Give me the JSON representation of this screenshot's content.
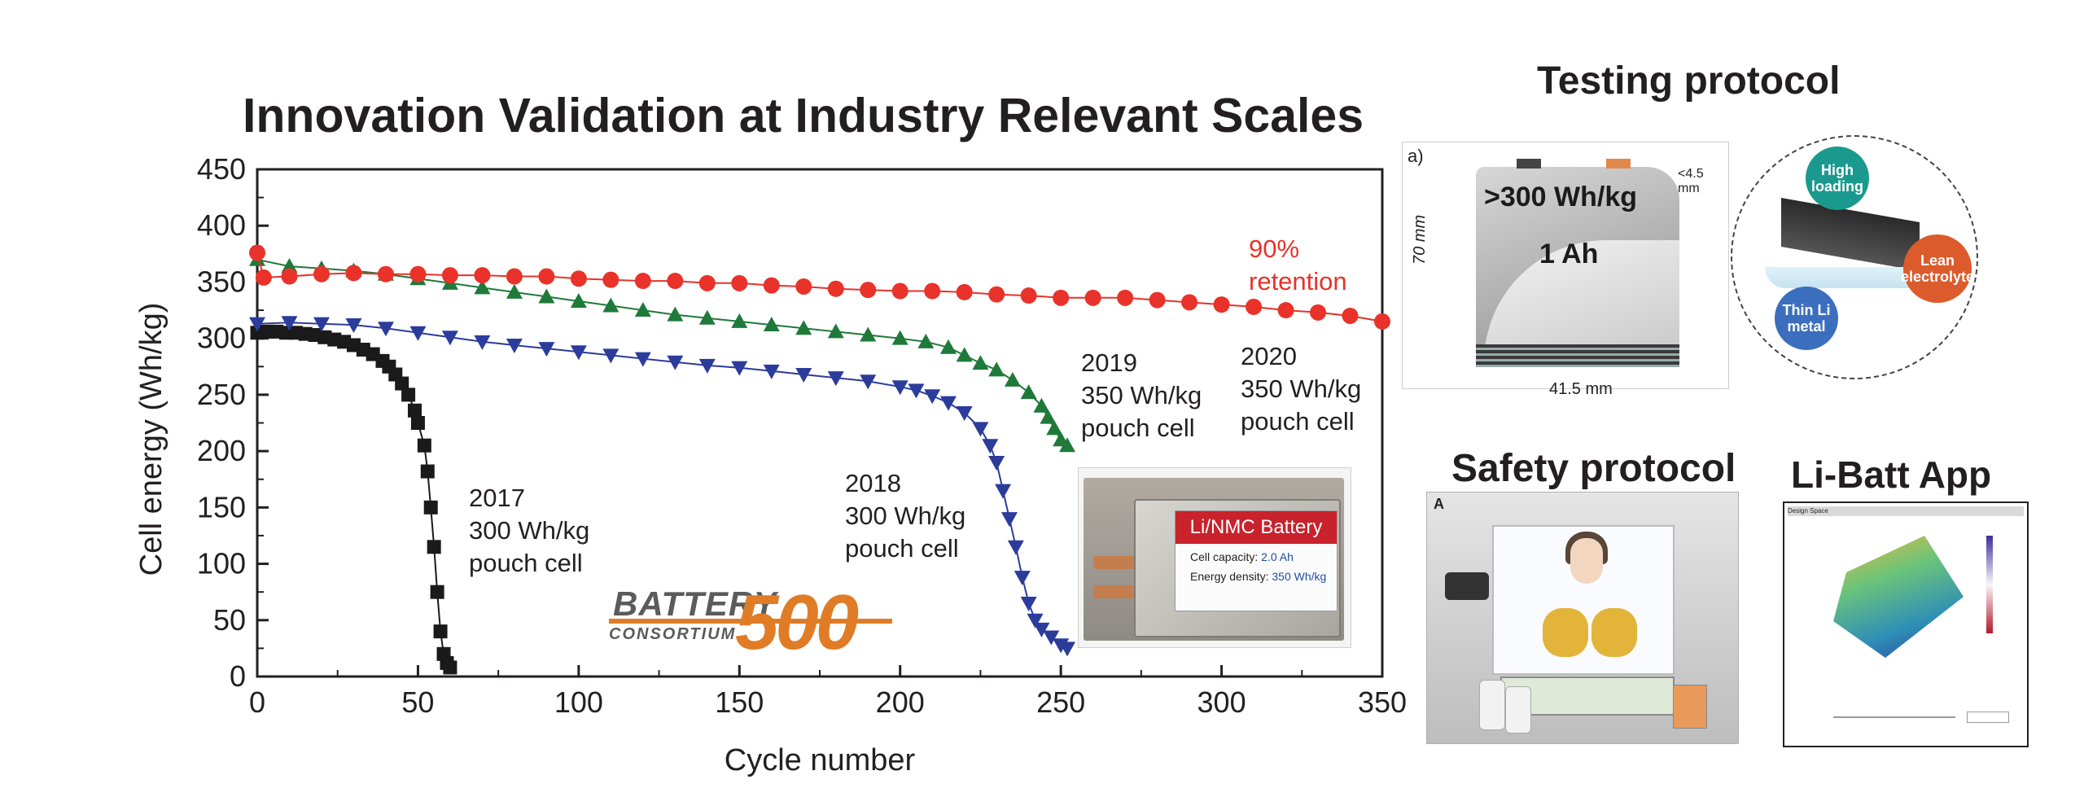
{
  "chart_data": {
    "type": "scatter",
    "title": "Innovation Validation at Industry Relevant Scales",
    "xlabel": "Cycle number",
    "ylabel": "Cell energy (Wh/kg)",
    "xlim": [
      0,
      350
    ],
    "ylim": [
      0,
      450
    ],
    "xticks": [
      0,
      50,
      100,
      150,
      200,
      250,
      300,
      350
    ],
    "yticks": [
      0,
      50,
      100,
      150,
      200,
      250,
      300,
      350,
      400,
      450
    ],
    "grid": false,
    "series": [
      {
        "name_lines": [
          "2017",
          "300 Wh/kg",
          "pouch cell"
        ],
        "marker": "square",
        "color": "#1a1a1a",
        "points": [
          [
            0,
            305
          ],
          [
            3,
            306
          ],
          [
            6,
            306
          ],
          [
            9,
            305
          ],
          [
            12,
            305
          ],
          [
            15,
            304
          ],
          [
            18,
            303
          ],
          [
            21,
            301
          ],
          [
            24,
            299
          ],
          [
            27,
            297
          ],
          [
            30,
            294
          ],
          [
            33,
            290
          ],
          [
            36,
            286
          ],
          [
            39,
            280
          ],
          [
            41,
            275
          ],
          [
            43,
            268
          ],
          [
            45,
            260
          ],
          [
            47,
            250
          ],
          [
            49,
            236
          ],
          [
            50,
            225
          ],
          [
            52,
            205
          ],
          [
            53,
            182
          ],
          [
            54,
            150
          ],
          [
            55,
            115
          ],
          [
            56,
            75
          ],
          [
            57,
            40
          ],
          [
            58,
            20
          ],
          [
            59,
            12
          ],
          [
            60,
            8
          ]
        ]
      },
      {
        "name_lines": [
          "2018",
          "300 Wh/kg",
          "pouch cell"
        ],
        "marker": "triangle-down",
        "color": "#2b3c9b",
        "points": [
          [
            0,
            313
          ],
          [
            10,
            314
          ],
          [
            20,
            313
          ],
          [
            30,
            312
          ],
          [
            40,
            309
          ],
          [
            50,
            305
          ],
          [
            60,
            301
          ],
          [
            70,
            297
          ],
          [
            80,
            294
          ],
          [
            90,
            291
          ],
          [
            100,
            288
          ],
          [
            110,
            285
          ],
          [
            120,
            282
          ],
          [
            130,
            279
          ],
          [
            140,
            276
          ],
          [
            150,
            274
          ],
          [
            160,
            271
          ],
          [
            170,
            268
          ],
          [
            180,
            265
          ],
          [
            190,
            262
          ],
          [
            200,
            257
          ],
          [
            205,
            254
          ],
          [
            210,
            249
          ],
          [
            215,
            243
          ],
          [
            220,
            234
          ],
          [
            225,
            220
          ],
          [
            228,
            205
          ],
          [
            230,
            190
          ],
          [
            232,
            165
          ],
          [
            234,
            140
          ],
          [
            236,
            115
          ],
          [
            238,
            88
          ],
          [
            240,
            65
          ],
          [
            242,
            50
          ],
          [
            244,
            42
          ],
          [
            247,
            35
          ],
          [
            250,
            28
          ],
          [
            252,
            25
          ]
        ]
      },
      {
        "name_lines": [
          "2019",
          "350 Wh/kg",
          "pouch cell"
        ],
        "marker": "triangle-up",
        "color": "#1f7a3a",
        "points": [
          [
            0,
            370
          ],
          [
            10,
            364
          ],
          [
            20,
            362
          ],
          [
            30,
            360
          ],
          [
            40,
            357
          ],
          [
            50,
            353
          ],
          [
            60,
            349
          ],
          [
            70,
            345
          ],
          [
            80,
            341
          ],
          [
            90,
            337
          ],
          [
            100,
            333
          ],
          [
            110,
            329
          ],
          [
            120,
            325
          ],
          [
            130,
            321
          ],
          [
            140,
            318
          ],
          [
            150,
            315
          ],
          [
            160,
            312
          ],
          [
            170,
            309
          ],
          [
            180,
            306
          ],
          [
            190,
            303
          ],
          [
            200,
            300
          ],
          [
            208,
            297
          ],
          [
            215,
            292
          ],
          [
            220,
            285
          ],
          [
            225,
            278
          ],
          [
            230,
            272
          ],
          [
            235,
            263
          ],
          [
            240,
            252
          ],
          [
            244,
            240
          ],
          [
            246,
            230
          ],
          [
            248,
            220
          ],
          [
            250,
            210
          ],
          [
            252,
            205
          ]
        ]
      },
      {
        "name_lines": [
          "2020",
          "350 Wh/kg",
          "pouch cell"
        ],
        "marker": "circle",
        "color": "#e8322a",
        "points": [
          [
            0,
            376
          ],
          [
            2,
            354
          ],
          [
            10,
            355
          ],
          [
            20,
            357
          ],
          [
            30,
            358
          ],
          [
            40,
            357
          ],
          [
            50,
            357
          ],
          [
            60,
            356
          ],
          [
            70,
            356
          ],
          [
            80,
            355
          ],
          [
            90,
            355
          ],
          [
            100,
            353
          ],
          [
            110,
            352
          ],
          [
            120,
            351
          ],
          [
            130,
            351
          ],
          [
            140,
            349
          ],
          [
            150,
            349
          ],
          [
            160,
            347
          ],
          [
            170,
            346
          ],
          [
            180,
            344
          ],
          [
            190,
            343
          ],
          [
            200,
            342
          ],
          [
            210,
            342
          ],
          [
            220,
            341
          ],
          [
            230,
            339
          ],
          [
            240,
            338
          ],
          [
            250,
            336
          ],
          [
            260,
            336
          ],
          [
            270,
            336
          ],
          [
            280,
            334
          ],
          [
            290,
            332
          ],
          [
            300,
            330
          ],
          [
            310,
            328
          ],
          [
            320,
            325
          ],
          [
            330,
            323
          ],
          [
            340,
            320
          ],
          [
            350,
            315
          ]
        ]
      }
    ],
    "annotation_lines": [
      "90%",
      "retention"
    ]
  },
  "inset": {
    "header": "Li/NMC Battery",
    "capacity_label": "Cell capacity: ",
    "capacity_value": "2.0 Ah",
    "density_label": "Energy density: ",
    "density_value": "350 Wh/kg"
  },
  "logo": {
    "word": "BATTERY",
    "number": "500",
    "sub": "CONSORTIUM"
  },
  "testing_protocol": {
    "title": "Testing protocol",
    "panel_label": "a)",
    "energy": ">300 Wh/kg",
    "capacity": "1 Ah",
    "height": "70 mm",
    "width": "41.5 mm",
    "thickness": "<4.5 mm",
    "bubbles": {
      "high": "High loading",
      "lean": "Lean electrolyte",
      "thin": "Thin Li metal"
    }
  },
  "safety_protocol": {
    "title": "Safety protocol",
    "panel_label": "A"
  },
  "app": {
    "title": "Li-Batt App",
    "header": "Design Space"
  },
  "colors": {
    "axis": "#231f20",
    "red": "#e8322a",
    "green": "#1f7a3a",
    "blue": "#2b3c9b",
    "black": "#1a1a1a",
    "orange": "#e07c26"
  }
}
